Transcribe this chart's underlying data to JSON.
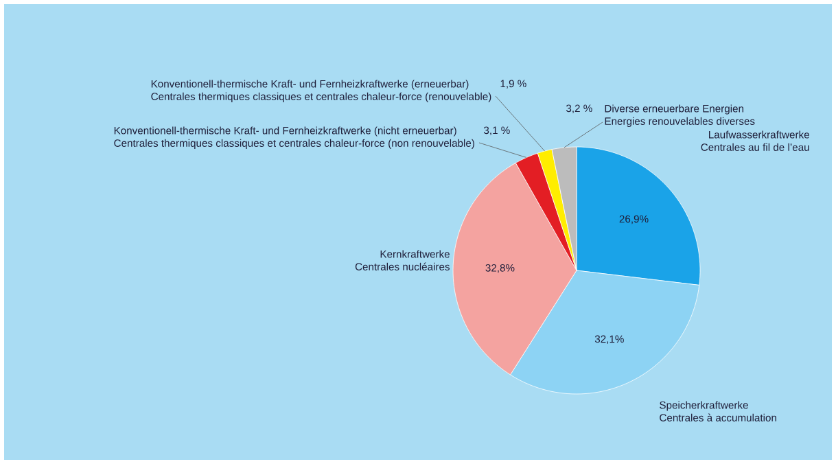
{
  "chart_data": {
    "type": "pie",
    "categories": [
      "Laufwasserkraftwerke\nCentrales au fil de l’eau",
      "Speicherkraftwerke\nCentrales à accumulation",
      "Kernkraftwerke\nCentrales nucléaires",
      "Konventionell-thermische Kraft- und Fernheizkraftwerke (nicht erneuerbar)\nCentrales thermiques classiques et centrales chaleur-force (non renouvelable)",
      "Konventionell-thermische Kraft- und Fernheizkraftwerke (erneuerbar)\nCentrales thermiques classiques et centrales chaleur-force (renouvelable)",
      "Diverse erneuerbare Energien\nEnergies renouvelables diverses"
    ],
    "values": [
      26.9,
      32.1,
      32.8,
      3.1,
      1.9,
      3.2
    ],
    "value_labels": [
      "26,9%",
      "32,1%",
      "32,8%",
      "3,1 %",
      "1,9 %",
      "3,2 %"
    ],
    "colors": [
      "#1aa3e8",
      "#8dd3f4",
      "#f4a3a0",
      "#e31e24",
      "#ffed00",
      "#bcbcbc"
    ]
  }
}
